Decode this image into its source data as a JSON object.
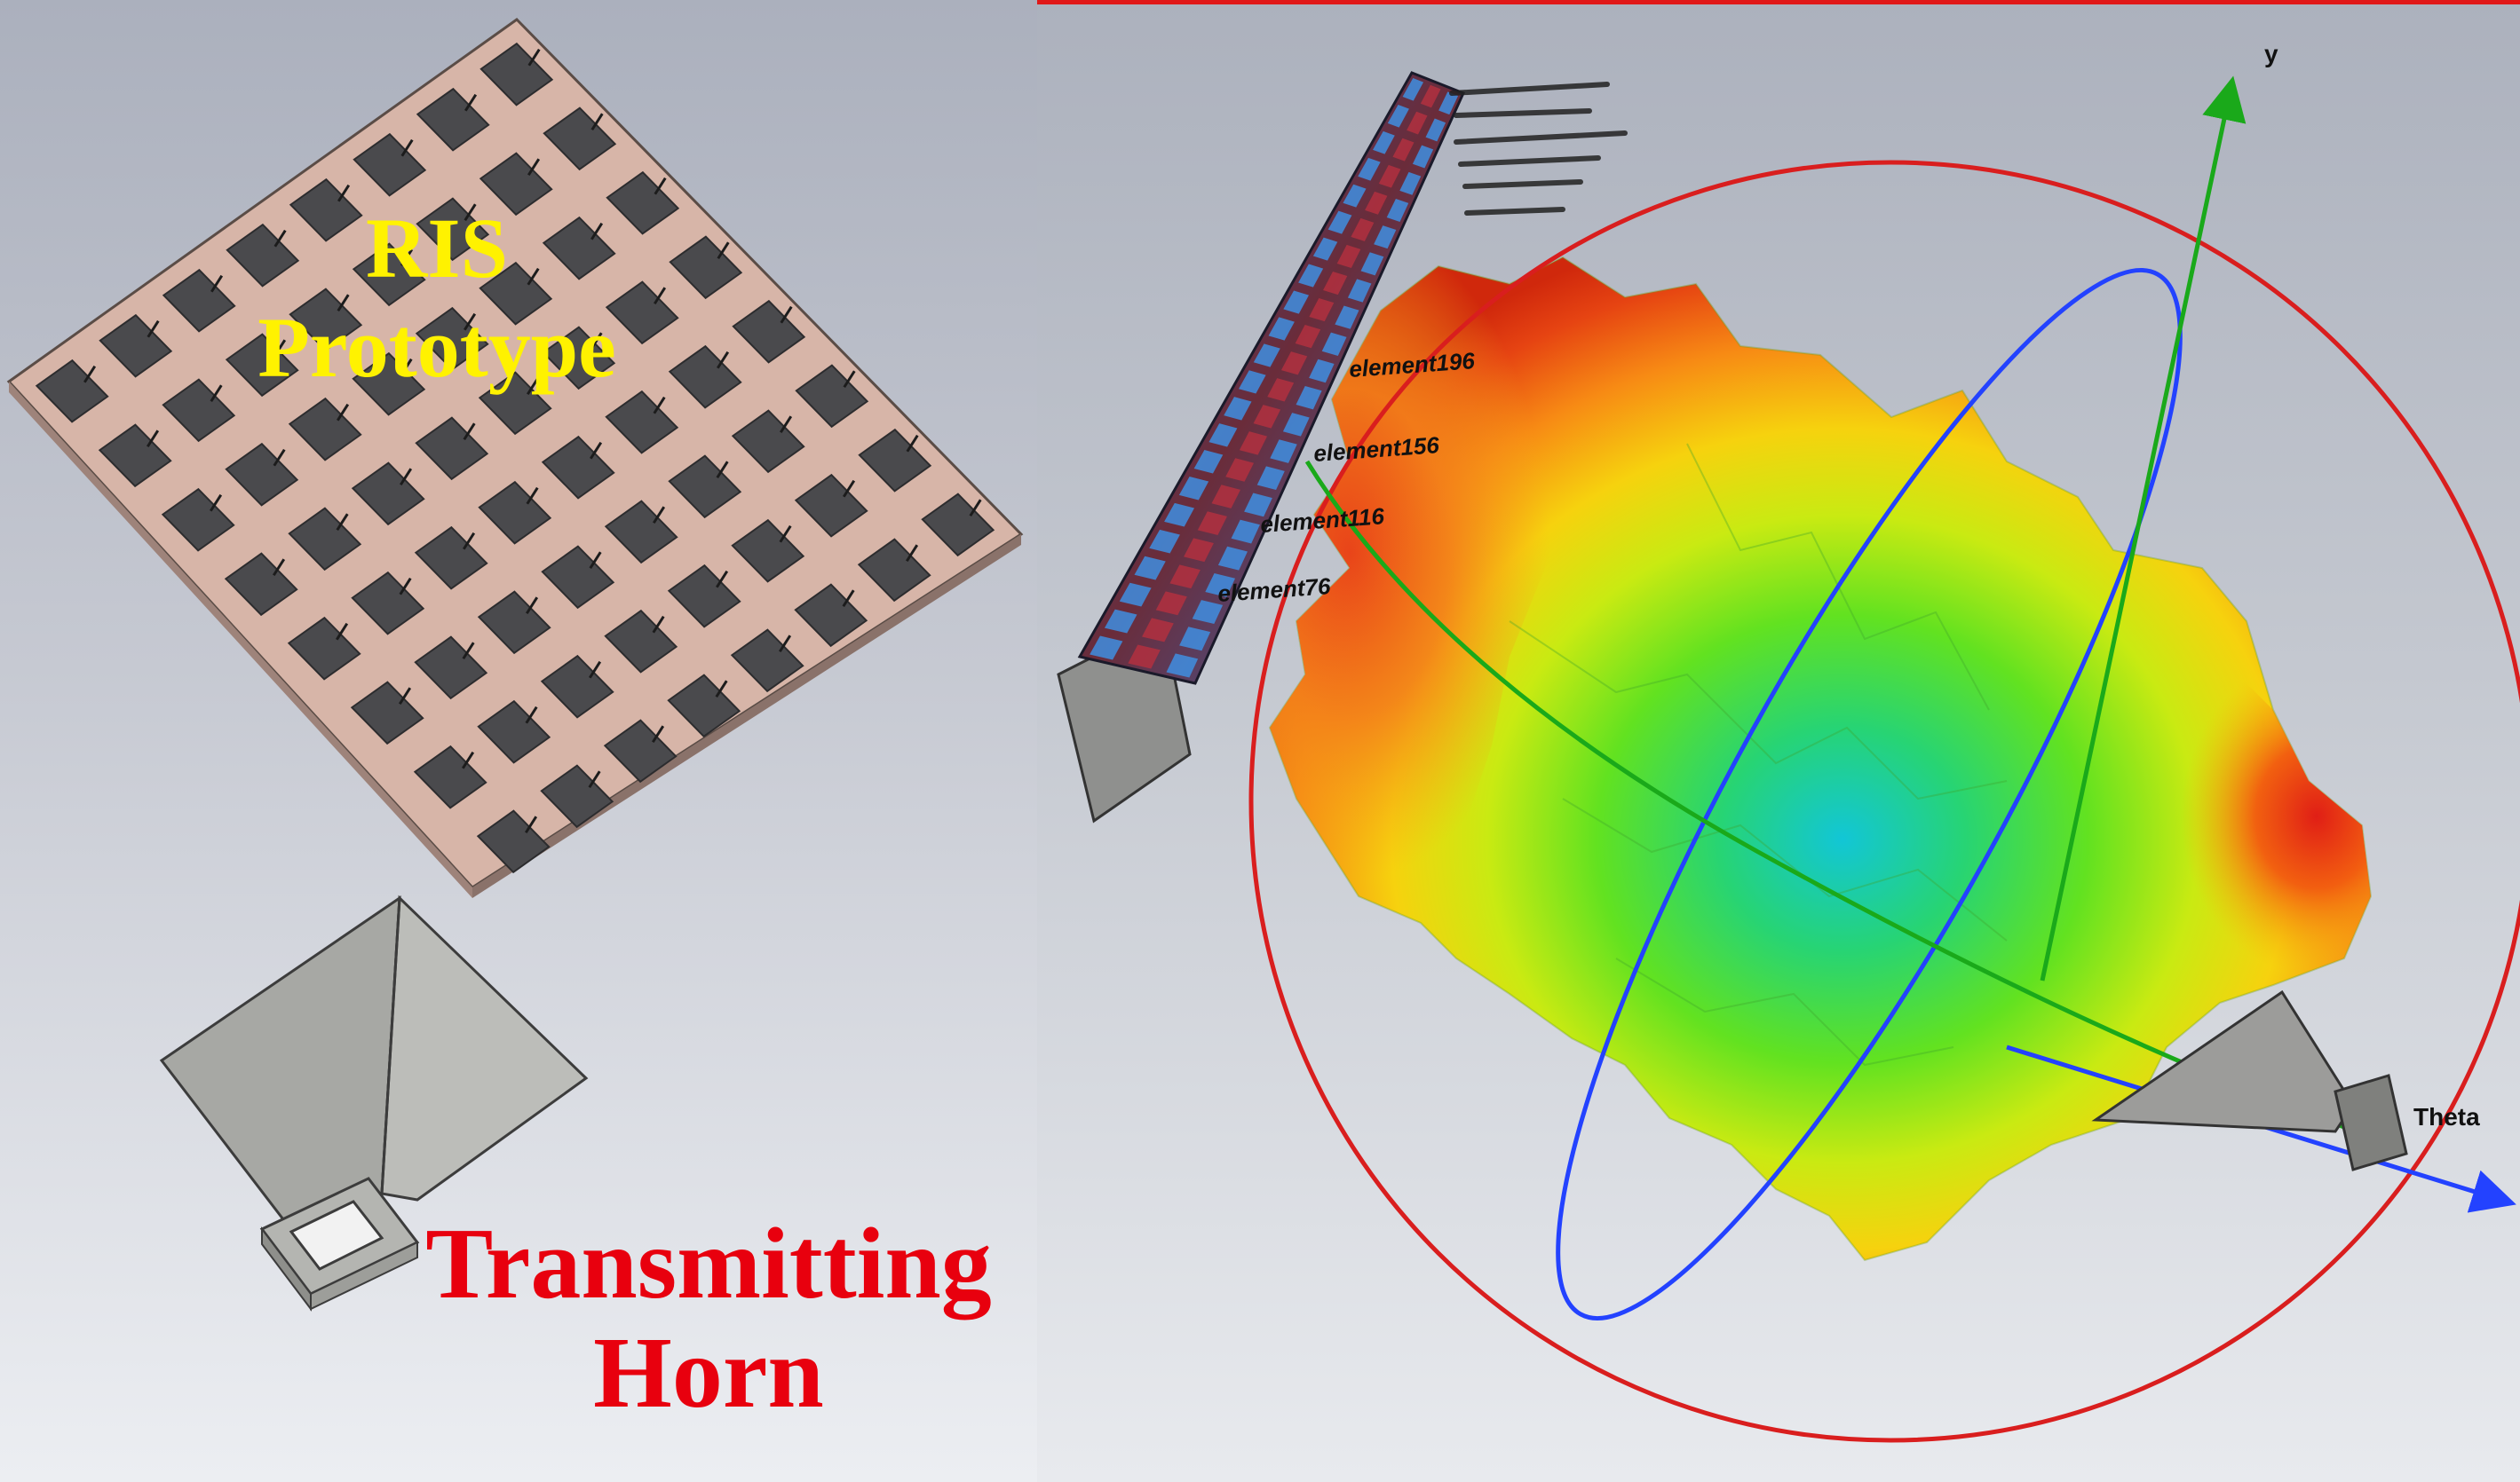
{
  "ris_label": {
    "line1": "RIS",
    "line2": "Prototype"
  },
  "horn_label": {
    "line1": "Transmitting",
    "line2": "Horn"
  },
  "axes": {
    "y": "y",
    "theta": "Theta"
  },
  "element_labels": [
    "element76",
    "element116",
    "element156",
    "element196"
  ],
  "ris_grid": {
    "rows": 8,
    "cols": 8
  },
  "colors": {
    "substrate": "#d6b3a6",
    "patch": "#4a4a4d",
    "horn": "#a4a5a2",
    "sphere_circle": "#d91e1e",
    "blue_axis": "#2342ff",
    "green_axis": "#1aa91a",
    "accent_red": "#e8000e",
    "accent_yellow": "#fff200"
  }
}
